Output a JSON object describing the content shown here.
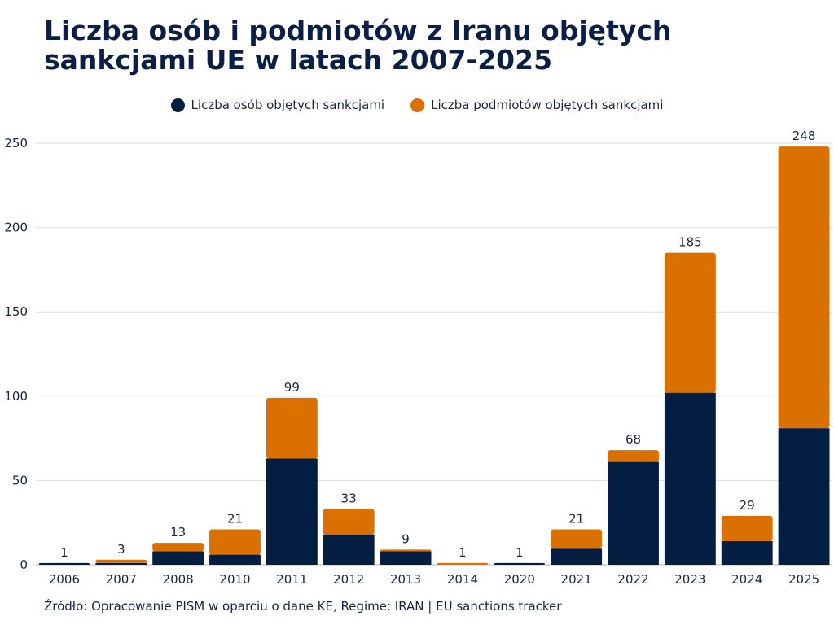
{
  "title": "Liczba osób i podmiotów z Iranu objętych sankcjami UE w latach 2007-2025",
  "source": "Źródło: Opracowanie PISM w oparciu o dane KE, Regime: IRAN | EU sanctions tracker",
  "colors": {
    "persons": "#041e42",
    "entities": "#d97000"
  },
  "chart_data": {
    "type": "bar",
    "stacked": true,
    "title": "Liczba osób i podmiotów z Iranu objętych sankcjami UE w latach 2007-2025",
    "xlabel": "",
    "ylabel": "",
    "ylim": [
      0,
      250
    ],
    "yticks": [
      0,
      50,
      100,
      150,
      200,
      250
    ],
    "grid": true,
    "legend_position": "top-center",
    "categories": [
      "2006",
      "2007",
      "2008",
      "2010",
      "2011",
      "2012",
      "2013",
      "2014",
      "2020",
      "2021",
      "2022",
      "2023",
      "2024",
      "2025"
    ],
    "series": [
      {
        "name": "Liczba osób objętych sankcjami",
        "values": [
          1,
          1,
          8,
          6,
          63,
          18,
          8,
          0,
          1,
          10,
          61,
          102,
          14,
          81
        ]
      },
      {
        "name": "Liczba podmiotów objętych sankcjami",
        "values": [
          0,
          2,
          5,
          15,
          36,
          15,
          1,
          1,
          0,
          11,
          7,
          83,
          15,
          167
        ]
      }
    ],
    "totals": [
      1,
      3,
      13,
      21,
      99,
      33,
      9,
      1,
      1,
      21,
      68,
      185,
      29,
      248
    ]
  }
}
